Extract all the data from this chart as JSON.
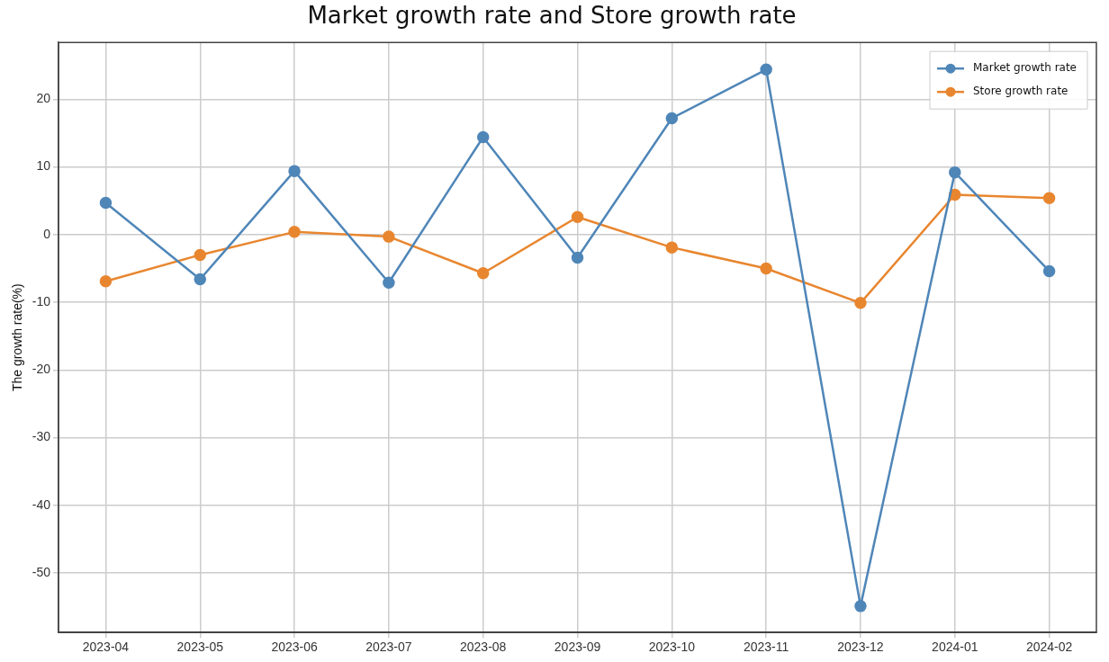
{
  "chart_data": {
    "type": "line",
    "title": "Market growth rate and Store growth rate",
    "ylabel": "The growth rate(%)",
    "categories": [
      "2023-04",
      "2023-05",
      "2023-06",
      "2023-07",
      "2023-08",
      "2023-09",
      "2023-10",
      "2023-11",
      "2023-12",
      "2024-01",
      "2024-02"
    ],
    "series": [
      {
        "name": "Market growth rate",
        "color": "#4f86b8",
        "values": [
          4.7,
          -6.6,
          9.4,
          -7.1,
          14.4,
          -3.4,
          17.2,
          24.4,
          -54.9,
          9.2,
          -5.4
        ]
      },
      {
        "name": "Store growth rate",
        "color": "#e8862f",
        "values": [
          -6.9,
          -3.0,
          0.4,
          -0.3,
          -5.7,
          2.6,
          -1.9,
          -5.0,
          -10.1,
          5.9,
          5.4
        ]
      }
    ],
    "ylim": [
      -58.8,
      28.4
    ],
    "yticks": [
      -50,
      -40,
      -30,
      -20,
      -10,
      0,
      10,
      20
    ],
    "grid": true,
    "legend": "top right",
    "marker": "circle",
    "line_style": "solid"
  }
}
